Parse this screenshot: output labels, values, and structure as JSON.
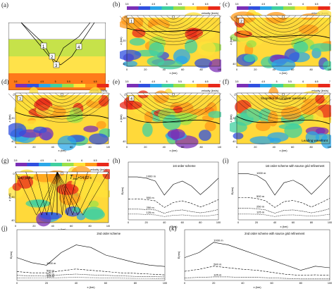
{
  "labels": {
    "a": "(a)",
    "b": "(b)",
    "c": "(c)",
    "d": "(d)",
    "e": "(e)",
    "f": "(f)",
    "g": "(g)",
    "h": "(h)",
    "i": "(i)",
    "j": "(j)",
    "k": "(k)"
  },
  "panel_a": {
    "paths": [
      "1",
      "2",
      "3",
      "4"
    ]
  },
  "velocity_label": "velocity (km/s)",
  "colorbar_ticks": [
    "3.5",
    "4",
    "4.5",
    "5",
    "5.5",
    "6",
    "6.5",
    "7"
  ],
  "depth_axis": "z (km)",
  "x_axis": "x (km)",
  "x_ticks": [
    "0",
    "20",
    "40",
    "60",
    "80",
    "100"
  ],
  "z_ticks": [
    "0",
    "20",
    "40"
  ],
  "snap_numbers": {
    "b": "1",
    "c": "2",
    "d": "3",
    "e": "4"
  },
  "f_text": {
    "top": "Snapshot of complete wavefront",
    "bottom": "Leading wavefront"
  },
  "g_text": {
    "ray": "Ray paths",
    "time": "T",
    "time_sub": "limit",
    "time_val": "=14.02 s"
  },
  "err_axis": "E(ms)",
  "chart_data": [
    {
      "type": "line",
      "panel": "h",
      "title": "1st order scheme",
      "xlabel": "x (km)",
      "ylabel": "E(ms)",
      "x": [
        0,
        10,
        20,
        30,
        40,
        50,
        60,
        70,
        80,
        90,
        100
      ],
      "series": [
        {
          "name": "1000 m",
          "values": [
            520,
            520,
            505,
            470,
            300,
            430,
            470,
            410,
            305,
            400,
            505
          ]
        },
        {
          "name": "500 m",
          "values": [
            250,
            255,
            245,
            230,
            150,
            210,
            230,
            200,
            155,
            195,
            245
          ]
        },
        {
          "name": "250 m",
          "values": [
            130,
            130,
            125,
            120,
            80,
            110,
            120,
            100,
            85,
            100,
            125
          ]
        },
        {
          "name": "125 m",
          "values": [
            70,
            70,
            65,
            60,
            40,
            55,
            60,
            50,
            45,
            50,
            65
          ]
        }
      ],
      "ylim": [
        0,
        700
      ]
    },
    {
      "type": "line",
      "panel": "i",
      "title": "1st order scheme with source grid refinement",
      "xlabel": "x (km)",
      "ylabel": "E(ms)",
      "x": [
        0,
        10,
        20,
        30,
        40,
        50,
        60,
        70,
        80,
        90,
        100
      ],
      "series": [
        {
          "name": "1000 m",
          "values": [
            560,
            560,
            540,
            470,
            300,
            450,
            480,
            420,
            310,
            420,
            540
          ]
        },
        {
          "name": "500 m",
          "values": [
            270,
            270,
            260,
            230,
            150,
            220,
            235,
            205,
            155,
            205,
            260
          ]
        },
        {
          "name": "250 m",
          "values": [
            140,
            140,
            135,
            120,
            80,
            115,
            120,
            105,
            85,
            105,
            135
          ]
        },
        {
          "name": "125 m",
          "values": [
            70,
            70,
            68,
            60,
            40,
            58,
            60,
            52,
            45,
            52,
            68
          ]
        }
      ],
      "ylim": [
        0,
        700
      ]
    },
    {
      "type": "line",
      "panel": "j",
      "title": "2nd order scheme",
      "xlabel": "x (km)",
      "ylabel": "E(ms)",
      "x": [
        0,
        10,
        20,
        30,
        40,
        50,
        60,
        70,
        80,
        90,
        100
      ],
      "series": [
        {
          "name": "1000 m",
          "values": [
            90,
            70,
            60,
            110,
            140,
            130,
            100,
            85,
            70,
            60,
            55
          ]
        },
        {
          "name": "500 m",
          "values": [
            35,
            30,
            30,
            38,
            45,
            40,
            35,
            30,
            28,
            25,
            22
          ]
        },
        {
          "name": "250 m",
          "values": [
            20,
            18,
            17,
            22,
            25,
            22,
            20,
            18,
            16,
            15,
            14
          ]
        },
        {
          "name": "125 m",
          "values": [
            10,
            9,
            9,
            11,
            12,
            11,
            10,
            9,
            8,
            8,
            7
          ]
        }
      ],
      "ylim": [
        0,
        200
      ]
    },
    {
      "type": "line",
      "panel": "k",
      "title": "2nd order scheme with source grid refinement",
      "xlabel": "x (km)",
      "ylabel": "E(ms)",
      "x": [
        0,
        10,
        20,
        30,
        40,
        50,
        60,
        70,
        80,
        90,
        100
      ],
      "series": [
        {
          "name": "1000 m",
          "values": [
            45,
            55,
            75,
            70,
            60,
            50,
            40,
            30,
            20,
            28,
            25
          ]
        },
        {
          "name": "500 m",
          "values": [
            18,
            22,
            28,
            25,
            22,
            20,
            16,
            12,
            10,
            11,
            10
          ]
        },
        {
          "name": "125 m",
          "values": [
            5,
            6,
            7,
            7,
            6,
            6,
            5,
            4,
            3,
            3,
            3
          ]
        }
      ],
      "ylim": [
        0,
        100
      ]
    }
  ]
}
